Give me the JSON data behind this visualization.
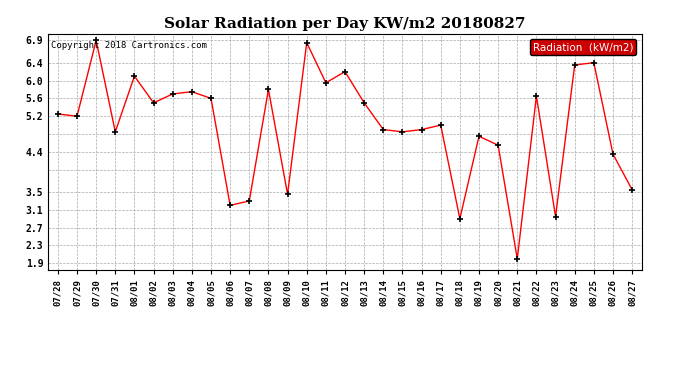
{
  "title": "Solar Radiation per Day KW/m2 20180827",
  "copyright": "Copyright 2018 Cartronics.com",
  "legend_label": "Radiation  (kW/m2)",
  "dates": [
    "07/28",
    "07/29",
    "07/30",
    "07/31",
    "08/01",
    "08/02",
    "08/03",
    "08/04",
    "08/05",
    "08/06",
    "08/07",
    "08/08",
    "08/09",
    "08/10",
    "08/11",
    "08/12",
    "08/13",
    "08/14",
    "08/15",
    "08/16",
    "08/17",
    "08/18",
    "08/19",
    "08/20",
    "08/21",
    "08/22",
    "08/23",
    "08/24",
    "08/25",
    "08/26",
    "08/27"
  ],
  "values": [
    5.25,
    5.2,
    6.9,
    4.85,
    6.1,
    5.5,
    5.7,
    5.75,
    5.6,
    3.2,
    3.3,
    5.8,
    3.45,
    6.85,
    5.95,
    6.2,
    5.5,
    4.9,
    4.85,
    4.9,
    5.0,
    2.9,
    4.75,
    4.55,
    2.0,
    5.65,
    2.95,
    6.35,
    6.4,
    4.35,
    3.55
  ],
  "ytick_vals": [
    1.9,
    2.3,
    2.7,
    3.1,
    3.5,
    4.0,
    4.4,
    4.8,
    5.2,
    5.6,
    6.0,
    6.4,
    6.9
  ],
  "ytick_labels": [
    "1.9",
    "2.3",
    "2.7",
    "3.1",
    "3.5",
    "",
    "4.4",
    "",
    "5.2",
    "5.6",
    "6.0",
    "6.4",
    "6.9"
  ],
  "line_color": "red",
  "marker_color": "black",
  "bg_color": "#ffffff",
  "grid_color": "#aaaaaa",
  "legend_bg": "#cc0000",
  "legend_text_color": "white"
}
